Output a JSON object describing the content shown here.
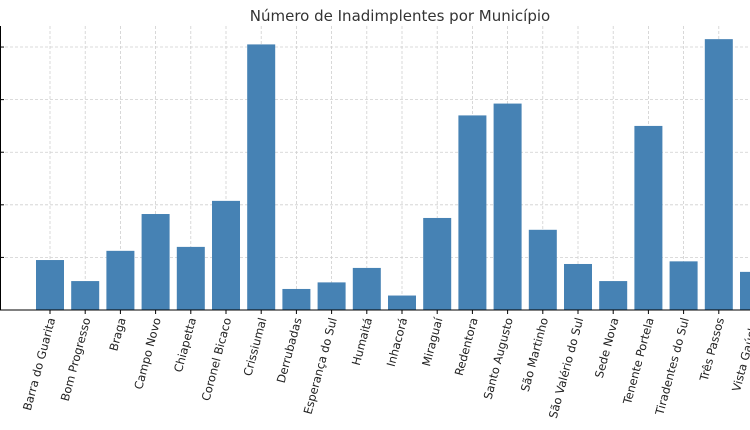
{
  "chart_data": {
    "type": "bar",
    "title": "Número de Inadimplentes por Município",
    "xlabel": "",
    "ylabel": "",
    "categories": [
      "Barra do Guarita",
      "Bom Progresso",
      "Braga",
      "Campo Novo",
      "Chiapetta",
      "Coronel Bicaco",
      "Crissiumal",
      "Derrubadas",
      "Esperança do Sul",
      "Humaitá",
      "Inhacorá",
      "Miraguaí",
      "Redentora",
      "Santo Augusto",
      "São Martinho",
      "São Valério do Sul",
      "Sede Nova",
      "Tenente Portela",
      "Tiradentes do Sul",
      "Três Passos",
      "Vista Gaúcha"
    ],
    "values": [
      19,
      11,
      22.5,
      36.5,
      24,
      41.5,
      101,
      8,
      10.5,
      16,
      5.5,
      35,
      74,
      78.5,
      30.5,
      17.5,
      11,
      70,
      18.5,
      103,
      14.5
    ],
    "ylim": [
      0,
      108
    ],
    "grid": true,
    "legend": "none",
    "bar_color": "#4682b4"
  }
}
